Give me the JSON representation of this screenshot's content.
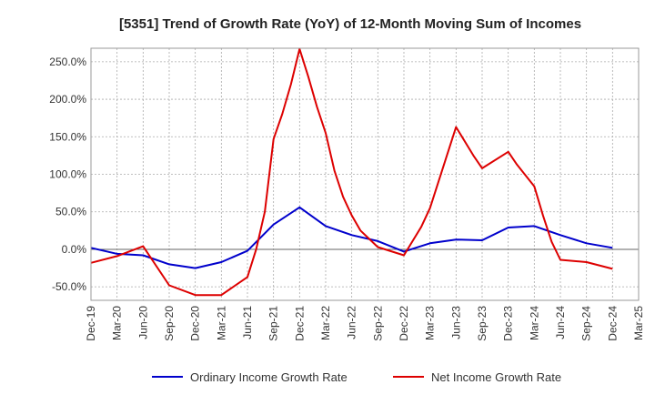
{
  "chart_data": {
    "type": "line",
    "title": "[5351]  Trend of Growth Rate (YoY) of 12-Month Moving Sum of Incomes",
    "xlabel": "",
    "ylabel": "",
    "x_ticks": [
      "Dec-19",
      "Mar-20",
      "Jun-20",
      "Sep-20",
      "Dec-20",
      "Mar-21",
      "Jun-21",
      "Sep-21",
      "Dec-21",
      "Mar-22",
      "Jun-22",
      "Sep-22",
      "Dec-22",
      "Mar-23",
      "Jun-23",
      "Sep-23",
      "Dec-23",
      "Mar-24",
      "Jun-24",
      "Sep-24",
      "Dec-24",
      "Mar-25"
    ],
    "y_ticks": [
      "-50.0%",
      "0.0%",
      "50.0%",
      "100.0%",
      "150.0%",
      "200.0%",
      "250.0%"
    ],
    "y_tick_values": [
      -50,
      0,
      50,
      100,
      150,
      200,
      250
    ],
    "ylim": [
      -68,
      268
    ],
    "grid": true,
    "legend_position": "bottom",
    "x_start": "Dec-19",
    "x_end": "Mar-25",
    "series": [
      {
        "name": "Ordinary Income Growth Rate",
        "color": "#0000cc",
        "points": [
          [
            "Dec-19",
            2
          ],
          [
            "Mar-20",
            -6
          ],
          [
            "Jun-20",
            -8
          ],
          [
            "Sep-20",
            -20
          ],
          [
            "Dec-20",
            -25
          ],
          [
            "Mar-21",
            -17
          ],
          [
            "Jun-21",
            -2
          ],
          [
            "Sep-21",
            33
          ],
          [
            "Dec-21",
            56
          ],
          [
            "Mar-22",
            31
          ],
          [
            "Jun-22",
            19
          ],
          [
            "Sep-22",
            11
          ],
          [
            "Dec-22",
            -3
          ],
          [
            "Mar-23",
            8
          ],
          [
            "Jun-23",
            13
          ],
          [
            "Sep-23",
            12
          ],
          [
            "Dec-23",
            29
          ],
          [
            "Mar-24",
            31
          ],
          [
            "Jun-24",
            19
          ],
          [
            "Sep-24",
            8
          ],
          [
            "Dec-24",
            2
          ]
        ]
      },
      {
        "name": "Net Income Growth Rate",
        "color": "#dd0000",
        "points": [
          [
            "Dec-19",
            -18
          ],
          [
            "Mar-20",
            -9
          ],
          [
            "Jun-20",
            4
          ],
          [
            "Sep-20",
            -48
          ],
          [
            "Dec-20",
            -61
          ],
          [
            "Mar-21",
            -61
          ],
          [
            "Jun-21",
            -37
          ],
          [
            "Jul-21",
            0
          ],
          [
            "Aug-21",
            50
          ],
          [
            "Sep-21",
            147
          ],
          [
            "Oct-21",
            180
          ],
          [
            "Nov-21",
            220
          ],
          [
            "Dec-21",
            267
          ],
          [
            "Jan-22",
            230
          ],
          [
            "Feb-22",
            190
          ],
          [
            "Mar-22",
            155
          ],
          [
            "Apr-22",
            105
          ],
          [
            "May-22",
            70
          ],
          [
            "Jun-22",
            45
          ],
          [
            "Jul-22",
            25
          ],
          [
            "Sep-22",
            3
          ],
          [
            "Dec-22",
            -8
          ],
          [
            "Feb-23",
            30
          ],
          [
            "Mar-23",
            55
          ],
          [
            "Jun-23",
            163
          ],
          [
            "Aug-23",
            125
          ],
          [
            "Sep-23",
            108
          ],
          [
            "Dec-23",
            130
          ],
          [
            "Jan-24",
            113
          ],
          [
            "Mar-24",
            84
          ],
          [
            "Apr-24",
            45
          ],
          [
            "May-24",
            10
          ],
          [
            "Jun-24",
            -14
          ],
          [
            "Sep-24",
            -17
          ],
          [
            "Dec-24",
            -26
          ]
        ]
      }
    ]
  }
}
